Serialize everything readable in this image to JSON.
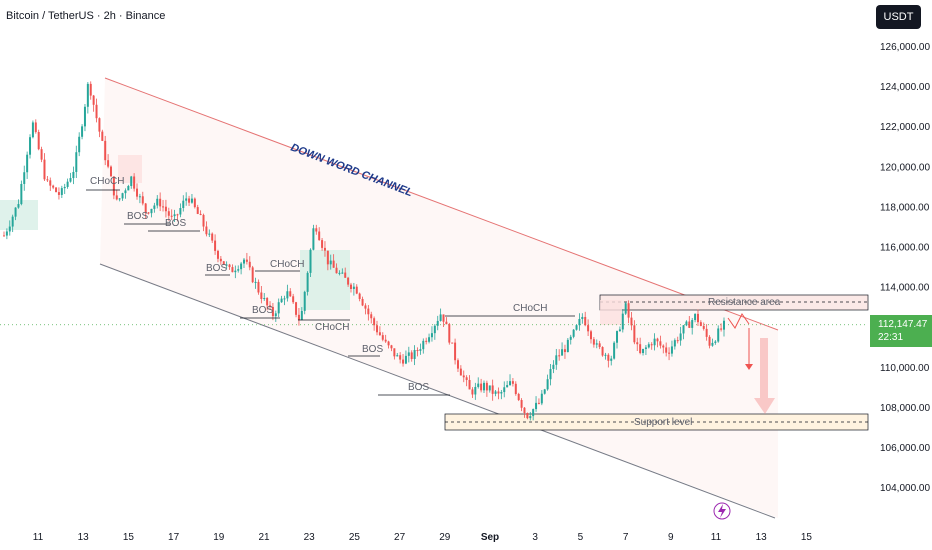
{
  "header": {
    "title": "Bitcoin / TetherUS · 2h · Binance",
    "currency": "USDT"
  },
  "price_tag": {
    "price": "112,147.47",
    "countdown": "22:31"
  },
  "colors": {
    "up": "#26a69a",
    "down": "#ef5350",
    "channel": "#e57373",
    "support_fill": "#fff3e0"
  },
  "chart_data": {
    "type": "candlestick",
    "x_ticks": [
      "11",
      "13",
      "15",
      "17",
      "19",
      "21",
      "23",
      "25",
      "27",
      "29",
      "Sep",
      "3",
      "5",
      "7",
      "9",
      "11",
      "13",
      "15"
    ],
    "y_ticks": [
      "126,000.00",
      "124,000.00",
      "122,000.00",
      "120,000.00",
      "118,000.00",
      "116,000.00",
      "114,000.00",
      "112,000.00",
      "110,000.00",
      "108,000.00",
      "106,000.00",
      "104,000.00"
    ],
    "ylim": [
      103000,
      127000
    ],
    "annotations": {
      "channel": "DOWN WORD CHANNEL",
      "resistance": "Resistance area",
      "support": "Support level",
      "structure": [
        "CHoCH",
        "BOS",
        "BOS",
        "BOS",
        "CHoCH",
        "BOS",
        "CHoCH",
        "BOS",
        "BOS",
        "CHoCH"
      ]
    },
    "path": [
      116600,
      118200,
      122300,
      119200,
      118600,
      120000,
      124300,
      121000,
      118200,
      119500,
      117800,
      118300,
      117300,
      118600,
      117300,
      115800,
      114800,
      115400,
      113900,
      112600,
      113800,
      112300,
      117300,
      115200,
      114500,
      113900,
      112400,
      111200,
      110400,
      110600,
      111600,
      112800,
      110400,
      108800,
      109100,
      108600,
      109300,
      107600,
      108300,
      110400,
      111200,
      112600,
      111000,
      110500,
      113100,
      110600,
      111400,
      110800,
      111800,
      112600,
      111200,
      112100
    ]
  }
}
